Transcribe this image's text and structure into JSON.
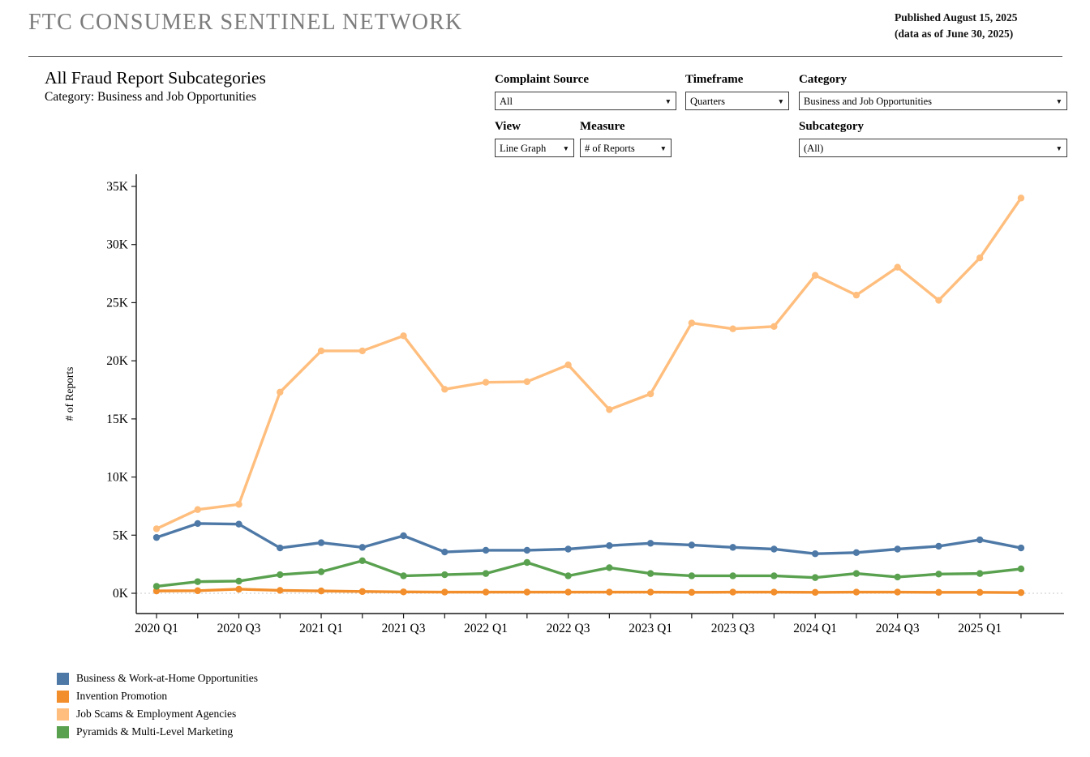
{
  "header": {
    "brand": "FTC CONSUMER SENTINEL NETWORK",
    "published_line1": "Published August 15, 2025",
    "published_line2": "(data as of June 30, 2025)"
  },
  "title": "All Fraud Report Subcategories",
  "subtitle": "Category: Business and Job Opportunities",
  "controls": [
    {
      "id": "complaint-source",
      "label": "Complaint Source",
      "value": "All"
    },
    {
      "id": "timeframe",
      "label": "Timeframe",
      "value": "Quarters"
    },
    {
      "id": "category",
      "label": "Category",
      "value": "Business and Job Opportunities"
    },
    {
      "id": "view",
      "label": "View",
      "value": "Line Graph"
    },
    {
      "id": "measure",
      "label": "Measure",
      "value": "# of Reports"
    },
    {
      "id": "subcategory",
      "label": "Subcategory",
      "value": "(All)"
    }
  ],
  "chart_data": {
    "type": "line",
    "ylabel": "# of Reports",
    "ylim": [
      0,
      35000
    ],
    "ytick_interval": 5000,
    "yticks": [
      "0K",
      "5K",
      "10K",
      "15K",
      "20K",
      "25K",
      "30K",
      "35K"
    ],
    "grid": "zero-line-only",
    "legend_position": "bottom-left",
    "x_labels_every": 2,
    "categories": [
      "2020 Q1",
      "2020 Q2",
      "2020 Q3",
      "2020 Q4",
      "2021 Q1",
      "2021 Q2",
      "2021 Q3",
      "2021 Q4",
      "2022 Q1",
      "2022 Q2",
      "2022 Q3",
      "2022 Q4",
      "2023 Q1",
      "2023 Q2",
      "2023 Q3",
      "2023 Q4",
      "2024 Q1",
      "2024 Q2",
      "2024 Q3",
      "2024 Q4",
      "2025 Q1",
      "2025 Q2"
    ],
    "series": [
      {
        "name": "Business & Work-at-Home Opportunities",
        "color": "#4E79A7",
        "values": [
          4800,
          6000,
          5950,
          3900,
          4350,
          3950,
          4950,
          3550,
          3700,
          3700,
          3800,
          4100,
          4300,
          4150,
          3950,
          3800,
          3400,
          3500,
          3800,
          4050,
          4600,
          3900
        ]
      },
      {
        "name": "Invention Promotion",
        "color": "#F28E2B",
        "values": [
          200,
          220,
          350,
          250,
          200,
          150,
          120,
          100,
          100,
          100,
          100,
          100,
          100,
          80,
          100,
          100,
          80,
          100,
          100,
          80,
          80,
          60
        ]
      },
      {
        "name": "Job Scams & Employment Agencies",
        "color": "#FFBE7D",
        "values": [
          5550,
          7200,
          7650,
          17300,
          20850,
          20850,
          22150,
          17550,
          18150,
          18200,
          19650,
          15800,
          17150,
          23250,
          22750,
          22950,
          27350,
          25650,
          28050,
          25200,
          28850,
          34000
        ]
      },
      {
        "name": "Pyramids & Multi-Level Marketing",
        "color": "#59A14F",
        "values": [
          600,
          1000,
          1050,
          1600,
          1850,
          2800,
          1500,
          1600,
          1700,
          2650,
          1500,
          2200,
          1700,
          1500,
          1500,
          1500,
          1350,
          1700,
          1400,
          1650,
          1700,
          2100
        ]
      }
    ]
  }
}
